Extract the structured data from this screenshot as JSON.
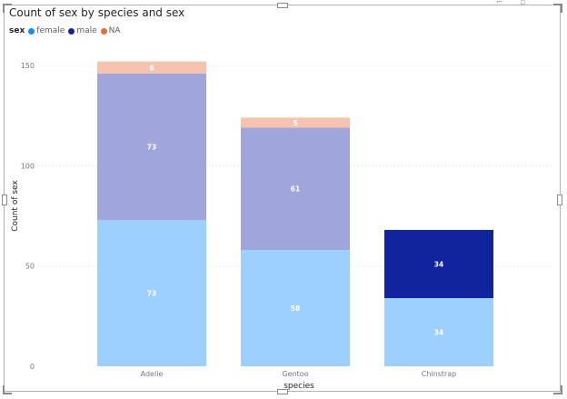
{
  "chart_data": {
    "type": "bar",
    "stacked": true,
    "title": "Count of sex by species and sex",
    "xlabel": "species",
    "ylabel": "Count of sex",
    "ylim": [
      0,
      160
    ],
    "yticks": [
      0,
      50,
      100,
      150
    ],
    "categories": [
      "Adelie",
      "Gentoo",
      "Chinstrap"
    ],
    "legend": {
      "title": "sex",
      "position": "top-left",
      "entries": [
        "female",
        "male",
        "NA"
      ]
    },
    "series": [
      {
        "name": "female",
        "values": [
          73,
          58,
          34
        ],
        "labels": [
          "73",
          "58",
          "34"
        ],
        "legend_color": "#118DFF",
        "colors": [
          "#9dd0ff",
          "#9dd0ff",
          "#9dd0ff"
        ]
      },
      {
        "name": "male",
        "values": [
          73,
          61,
          34
        ],
        "labels": [
          "73",
          "61",
          "34"
        ],
        "legend_color": "#12239E",
        "colors": [
          "#a0a6d9",
          "#a0a6d9",
          "#12239e"
        ]
      },
      {
        "name": "NA",
        "values": [
          6,
          5,
          0
        ],
        "labels": [
          "6",
          "5",
          ""
        ],
        "legend_color": "#E66C37",
        "colors": [
          "#f6c4ae",
          "#f6c4ae",
          "#f6c4ae"
        ]
      }
    ]
  }
}
